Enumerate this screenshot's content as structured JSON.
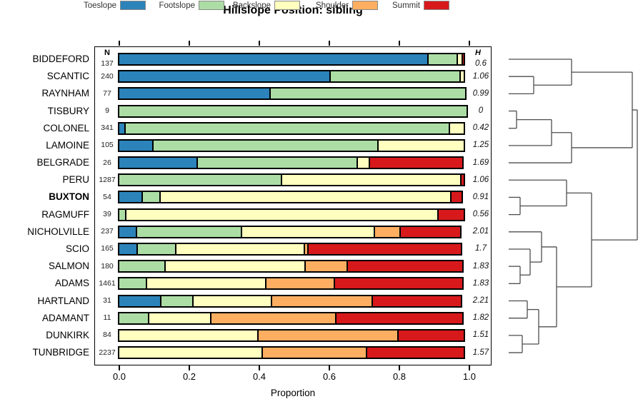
{
  "title": "Hillslope Position: sibling",
  "x_axis_label": "Proportion",
  "n_header": "N",
  "h_header": "H",
  "legend": [
    {
      "label": "Toeslope",
      "color": "#2B83BA"
    },
    {
      "label": "Footslope",
      "color": "#ABDDA4"
    },
    {
      "label": "Backslope",
      "color": "#FFFFBF"
    },
    {
      "label": "Shoulder",
      "color": "#FDAE61"
    },
    {
      "label": "Summit",
      "color": "#D7191C"
    }
  ],
  "chart_data": {
    "type": "bar",
    "orientation": "horizontal",
    "stacked": true,
    "title": "Hillslope Position: sibling",
    "xlabel": "Proportion",
    "xlim": [
      0,
      1
    ],
    "x_ticks": [
      "0.0",
      "0.2",
      "0.4",
      "0.6",
      "0.8",
      "1.0"
    ],
    "grid": false,
    "legend_position": "top",
    "series_names": [
      "Toeslope",
      "Footslope",
      "Backslope",
      "Shoulder",
      "Summit"
    ],
    "series_colors": [
      "#2B83BA",
      "#ABDDA4",
      "#FFFFBF",
      "#FDAE61",
      "#D7191C"
    ],
    "rows": [
      {
        "name": "BIDDEFORD",
        "n": "137",
        "h": "0.6",
        "bold": false,
        "values": [
          0.888,
          0.088,
          0.018,
          0,
          0.006
        ]
      },
      {
        "name": "SCANTIC",
        "n": "240",
        "h": "1.06",
        "bold": false,
        "values": [
          0.608,
          0.376,
          0.016,
          0,
          0
        ]
      },
      {
        "name": "RAYNHAM",
        "n": "77",
        "h": "0.99",
        "bold": false,
        "values": [
          0.436,
          0.564,
          0,
          0,
          0
        ]
      },
      {
        "name": "TISBURY",
        "n": "9",
        "h": "0",
        "bold": false,
        "values": [
          0,
          1,
          0,
          0,
          0
        ]
      },
      {
        "name": "COLONEL",
        "n": "341",
        "h": "0.42",
        "bold": false,
        "values": [
          0.022,
          0.931,
          0.047,
          0,
          0
        ]
      },
      {
        "name": "LAMOINE",
        "n": "105",
        "h": "1.25",
        "bold": false,
        "values": [
          0.102,
          0.647,
          0.251,
          0,
          0
        ]
      },
      {
        "name": "BELGRADE",
        "n": "26",
        "h": "1.69",
        "bold": false,
        "values": [
          0.229,
          0.461,
          0.039,
          0,
          0.271
        ]
      },
      {
        "name": "PERU",
        "n": "1287",
        "h": "1.06",
        "bold": false,
        "values": [
          0,
          0.469,
          0.516,
          0,
          0.015
        ]
      },
      {
        "name": "BUXTON",
        "n": "54",
        "h": "0.91",
        "bold": true,
        "values": [
          0.072,
          0.056,
          0.835,
          0,
          0.037
        ]
      },
      {
        "name": "RAGMUFF",
        "n": "39",
        "h": "0.56",
        "bold": false,
        "values": [
          0,
          0.024,
          0.896,
          0,
          0.08
        ]
      },
      {
        "name": "NICHOLVILLE",
        "n": "237",
        "h": "2.01",
        "bold": false,
        "values": [
          0.056,
          0.305,
          0.384,
          0.077,
          0.178
        ]
      },
      {
        "name": "SCIO",
        "n": "165",
        "h": "1.7",
        "bold": false,
        "values": [
          0.057,
          0.115,
          0.371,
          0.014,
          0.443
        ]
      },
      {
        "name": "SALMON",
        "n": "180",
        "h": "1.83",
        "bold": false,
        "values": [
          0,
          0.137,
          0.404,
          0.124,
          0.335
        ]
      },
      {
        "name": "ADAMS",
        "n": "1461",
        "h": "1.83",
        "bold": false,
        "values": [
          0,
          0.083,
          0.345,
          0.2,
          0.372
        ]
      },
      {
        "name": "HARTLAND",
        "n": "31",
        "h": "2.21",
        "bold": false,
        "values": [
          0.125,
          0.095,
          0.229,
          0.291,
          0.26
        ]
      },
      {
        "name": "ADAMANT",
        "n": "11",
        "h": "1.82",
        "bold": false,
        "values": [
          0,
          0.09,
          0.181,
          0.362,
          0.367
        ]
      },
      {
        "name": "DUNKIRK",
        "n": "84",
        "h": "1.51",
        "bold": false,
        "values": [
          0,
          0,
          0.402,
          0.404,
          0.194
        ]
      },
      {
        "name": "TUNBRIDGE",
        "n": "2237",
        "h": "1.57",
        "bold": false,
        "values": [
          0,
          0,
          0.414,
          0.302,
          0.284
        ]
      }
    ],
    "dendrogram": {
      "leaf_order": [
        "BIDDEFORD",
        "SCANTIC",
        "RAYNHAM",
        "TISBURY",
        "COLONEL",
        "LAMOINE",
        "BELGRADE",
        "PERU",
        "BUXTON",
        "RAGMUFF",
        "NICHOLVILLE",
        "SCIO",
        "SALMON",
        "ADAMS",
        "HARTLAND",
        "ADAMANT",
        "DUNKIRK",
        "TUNBRIDGE"
      ],
      "merges": [
        {
          "id": "A",
          "a": "L1",
          "b": "L2",
          "x": 747
        },
        {
          "id": "B",
          "a": "L0",
          "b": "A",
          "x": 800
        },
        {
          "id": "C",
          "a": "L3",
          "b": "L4",
          "x": 723
        },
        {
          "id": "D",
          "a": "C",
          "b": "L5",
          "x": 772
        },
        {
          "id": "E",
          "a": "D",
          "b": "L6",
          "x": 800
        },
        {
          "id": "F",
          "a": "B",
          "b": "E",
          "x": 885
        },
        {
          "id": "G",
          "a": "L8",
          "b": "L9",
          "x": 728
        },
        {
          "id": "H",
          "a": "L7",
          "b": "G",
          "x": 793
        },
        {
          "id": "I",
          "a": "L12",
          "b": "L13",
          "x": 728
        },
        {
          "id": "J",
          "a": "L11",
          "b": "I",
          "x": 742
        },
        {
          "id": "K",
          "a": "L10",
          "b": "J",
          "x": 758
        },
        {
          "id": "L",
          "a": "L14",
          "b": "L15",
          "x": 738
        },
        {
          "id": "M",
          "a": "L16",
          "b": "L17",
          "x": 731
        },
        {
          "id": "N",
          "a": "L",
          "b": "M",
          "x": 754
        },
        {
          "id": "O",
          "a": "K",
          "b": "N",
          "x": 779
        },
        {
          "id": "P",
          "a": "H",
          "b": "O",
          "x": 828
        },
        {
          "id": "R",
          "a": "F",
          "b": "P",
          "x": 892
        }
      ]
    }
  }
}
